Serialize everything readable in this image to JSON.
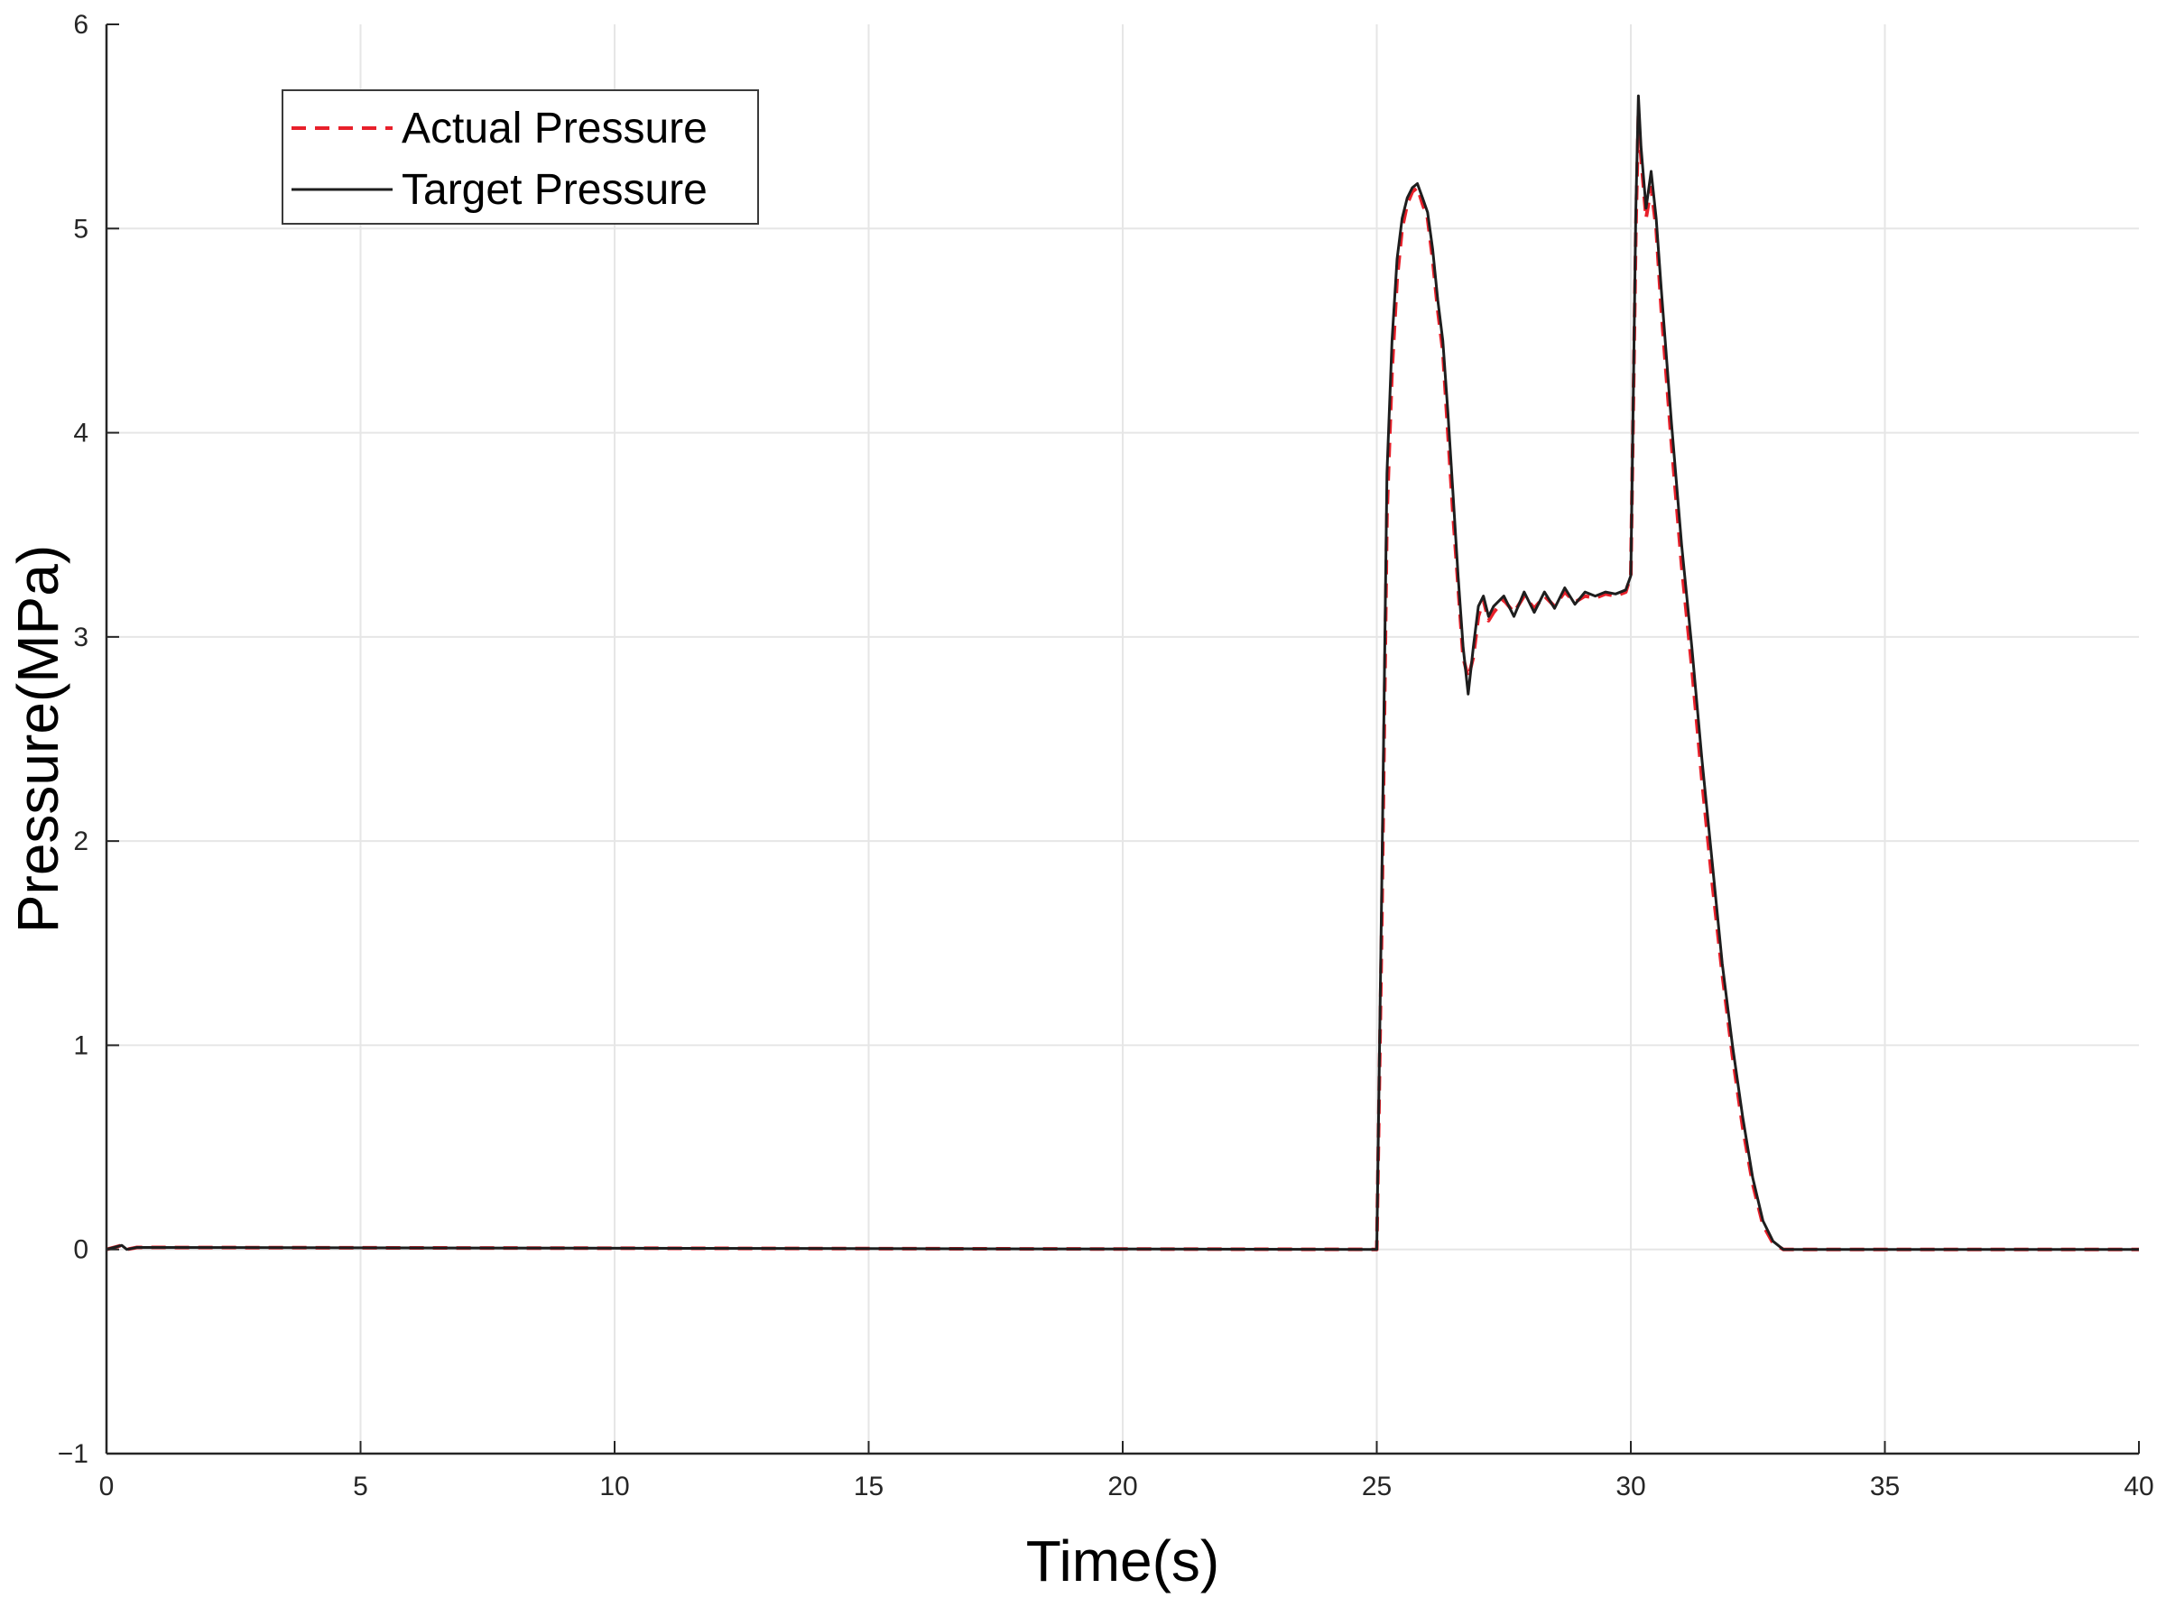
{
  "chart_data": {
    "type": "line",
    "title": "",
    "xlabel": "Time(s)",
    "ylabel": "Pressure(MPa)",
    "xlim": [
      0,
      40
    ],
    "ylim": [
      -1,
      6
    ],
    "xticks": [
      0,
      5,
      10,
      15,
      20,
      25,
      30,
      35,
      40
    ],
    "yticks": [
      -1,
      0,
      1,
      2,
      3,
      4,
      5,
      6
    ],
    "xtick_labels": [
      "0",
      "5",
      "10",
      "15",
      "20",
      "25",
      "30",
      "35",
      "40"
    ],
    "ytick_labels": [
      "−1",
      "0",
      "1",
      "2",
      "3",
      "4",
      "5",
      "6"
    ],
    "grid": true,
    "legend_position": "top-left",
    "series": [
      {
        "name": "Actual Pressure",
        "color": "#e8202a",
        "style": "dashed",
        "x": [
          0,
          0.3,
          0.4,
          0.6,
          25.0,
          25.1,
          25.2,
          25.3,
          25.4,
          25.5,
          25.6,
          25.7,
          25.8,
          25.9,
          26.0,
          26.1,
          26.2,
          26.3,
          26.4,
          26.5,
          26.6,
          26.7,
          26.8,
          26.9,
          27.0,
          27.1,
          27.2,
          27.3,
          27.5,
          27.7,
          27.9,
          28.1,
          28.3,
          28.5,
          28.7,
          28.9,
          29.1,
          29.3,
          29.5,
          29.7,
          29.9,
          30.0,
          30.1,
          30.15,
          30.2,
          30.3,
          30.4,
          30.5,
          30.6,
          30.8,
          31.0,
          31.2,
          31.4,
          31.6,
          31.8,
          32.0,
          32.2,
          32.4,
          32.6,
          32.8,
          33.0,
          33.2,
          33.3,
          34.0,
          40.0
        ],
        "y": [
          0,
          0.02,
          0.0,
          0.01,
          0,
          1.6,
          3.6,
          4.3,
          4.75,
          5.0,
          5.12,
          5.18,
          5.2,
          5.12,
          5.05,
          4.85,
          4.6,
          4.4,
          4.0,
          3.6,
          3.25,
          2.9,
          2.8,
          2.9,
          3.1,
          3.18,
          3.08,
          3.12,
          3.18,
          3.12,
          3.2,
          3.14,
          3.2,
          3.15,
          3.22,
          3.17,
          3.2,
          3.19,
          3.21,
          3.2,
          3.22,
          3.3,
          5.0,
          5.55,
          5.35,
          5.05,
          5.2,
          5.0,
          4.6,
          3.95,
          3.35,
          2.85,
          2.3,
          1.8,
          1.35,
          0.95,
          0.6,
          0.32,
          0.12,
          0.03,
          0.0,
          0.0,
          0.0,
          0,
          0
        ]
      },
      {
        "name": "Target Pressure",
        "color": "#1e1e1e",
        "style": "solid",
        "x": [
          0,
          0.3,
          0.4,
          0.6,
          25.0,
          25.1,
          25.2,
          25.3,
          25.4,
          25.5,
          25.6,
          25.7,
          25.8,
          25.9,
          26.0,
          26.1,
          26.2,
          26.3,
          26.4,
          26.5,
          26.6,
          26.7,
          26.8,
          26.9,
          27.0,
          27.1,
          27.2,
          27.3,
          27.5,
          27.7,
          27.9,
          28.1,
          28.3,
          28.5,
          28.7,
          28.9,
          29.1,
          29.3,
          29.5,
          29.7,
          29.9,
          30.0,
          30.1,
          30.15,
          30.2,
          30.3,
          30.4,
          30.5,
          30.6,
          30.8,
          31.0,
          31.2,
          31.4,
          31.6,
          31.8,
          32.0,
          32.2,
          32.4,
          32.6,
          32.8,
          33.0,
          33.2,
          33.3,
          34.0,
          40.0
        ],
        "y": [
          0,
          0.02,
          0.0,
          0.01,
          0,
          1.8,
          3.8,
          4.45,
          4.85,
          5.05,
          5.15,
          5.2,
          5.22,
          5.15,
          5.08,
          4.9,
          4.65,
          4.45,
          4.1,
          3.7,
          3.3,
          2.95,
          2.72,
          2.95,
          3.15,
          3.2,
          3.1,
          3.15,
          3.2,
          3.1,
          3.22,
          3.12,
          3.22,
          3.14,
          3.24,
          3.16,
          3.22,
          3.2,
          3.22,
          3.21,
          3.23,
          3.3,
          5.1,
          5.65,
          5.4,
          5.1,
          5.28,
          5.05,
          4.7,
          4.05,
          3.45,
          2.95,
          2.4,
          1.9,
          1.4,
          1.0,
          0.65,
          0.35,
          0.14,
          0.04,
          0.0,
          0.0,
          0.0,
          0,
          0
        ]
      }
    ]
  }
}
